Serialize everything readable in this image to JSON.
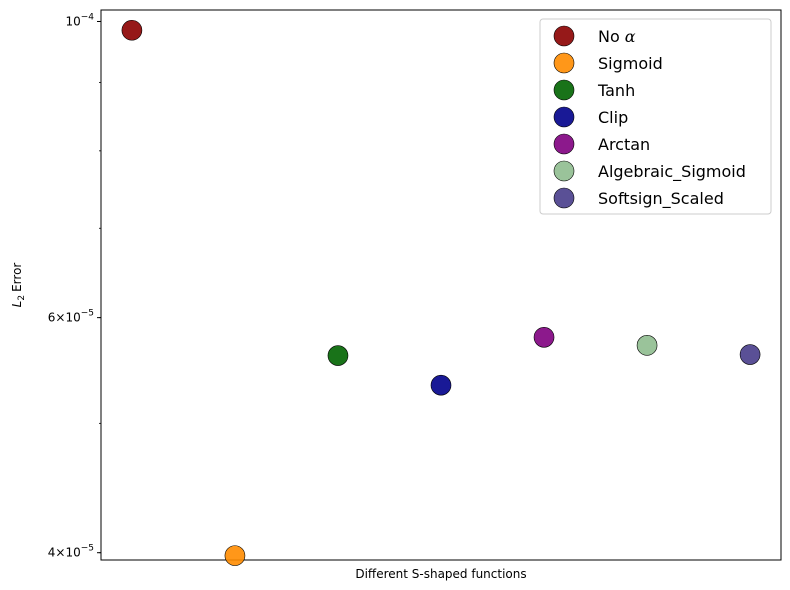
{
  "chart_data": {
    "type": "scatter",
    "xlabel": "Different S-shaped functions",
    "ylabel": "Error",
    "ylabel_symbol": "L",
    "ylabel_sub": "2",
    "yscale": "log",
    "ylim": [
      3.95e-05,
      0.000102
    ],
    "x_ticks_shown": false,
    "grid": false,
    "legend_position": "top-right",
    "y_ticks": [
      {
        "value": 0.0001,
        "mantissa": "",
        "base": "10",
        "exp": "−4"
      },
      {
        "value": 6e-05,
        "mantissa": "6×",
        "base": "10",
        "exp": "−5"
      },
      {
        "value": 4e-05,
        "mantissa": "4×",
        "base": "10",
        "exp": "−5"
      }
    ],
    "series": [
      {
        "name": "No α",
        "name_plain": "No",
        "name_italic": "α",
        "x": 0,
        "y": 9.85e-05,
        "color": "#8b0000"
      },
      {
        "name": "Sigmoid",
        "name_plain": "Sigmoid",
        "name_italic": "",
        "x": 1,
        "y": 3.98e-05,
        "color": "#ff8c00"
      },
      {
        "name": "Tanh",
        "name_plain": "Tanh",
        "name_italic": "",
        "x": 2,
        "y": 5.62e-05,
        "color": "#006400"
      },
      {
        "name": "Clip",
        "name_plain": "Clip",
        "name_italic": "",
        "x": 3,
        "y": 5.34e-05,
        "color": "#00008b"
      },
      {
        "name": "Arctan",
        "name_plain": "Arctan",
        "name_italic": "",
        "x": 4,
        "y": 5.8e-05,
        "color": "#800080"
      },
      {
        "name": "Algebraic_Sigmoid",
        "name_plain": "Algebraic_Sigmoid",
        "name_italic": "",
        "x": 5,
        "y": 5.72e-05,
        "color": "#8fbc8f"
      },
      {
        "name": "Softsign_Scaled",
        "name_plain": "Softsign_Scaled",
        "name_italic": "",
        "x": 6,
        "y": 5.63e-05,
        "color": "#483d8b"
      }
    ]
  }
}
